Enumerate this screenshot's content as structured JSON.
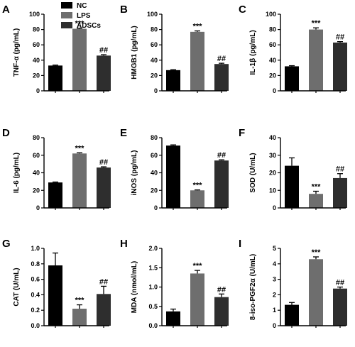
{
  "legend": [
    {
      "label": "NC",
      "color": "#000000"
    },
    {
      "label": "LPS",
      "color": "#6e6e6e"
    },
    {
      "label": "ADSCs",
      "color": "#2e2e2e"
    }
  ],
  "chart_data": [
    {
      "type": "bar",
      "panel": "A",
      "ylabel": "TNF-α (pg/mL)",
      "ylim": [
        0,
        100
      ],
      "ticks": [
        0,
        20,
        40,
        60,
        80,
        100
      ],
      "categories": [
        "NC",
        "LPS",
        "ADSCs"
      ],
      "values": [
        33,
        81,
        46
      ],
      "errors": [
        0.6,
        0.8,
        1.2
      ],
      "annotations": [
        "",
        "***",
        "##"
      ]
    },
    {
      "type": "bar",
      "panel": "B",
      "ylabel": "HMGB1 (pg/mL)",
      "ylim": [
        0,
        100
      ],
      "ticks": [
        0,
        20,
        40,
        60,
        80,
        100
      ],
      "categories": [
        "NC",
        "LPS",
        "ADSCs"
      ],
      "values": [
        27,
        77,
        35
      ],
      "errors": [
        0.6,
        1.2,
        1.0
      ],
      "annotations": [
        "",
        "***",
        "##"
      ]
    },
    {
      "type": "bar",
      "panel": "C",
      "ylabel": "IL-1β (pg/mL)",
      "ylim": [
        0,
        100
      ],
      "ticks": [
        0,
        20,
        40,
        60,
        80,
        100
      ],
      "categories": [
        "NC",
        "LPS",
        "ADSCs"
      ],
      "values": [
        32,
        80,
        63
      ],
      "errors": [
        0.8,
        2.2,
        1.2
      ],
      "annotations": [
        "",
        "***",
        "##"
      ]
    },
    {
      "type": "bar",
      "panel": "D",
      "ylabel": "IL-6 (pg/mL)",
      "ylim": [
        0,
        80
      ],
      "ticks": [
        0,
        20,
        40,
        60,
        80
      ],
      "categories": [
        "NC",
        "LPS",
        "ADSCs"
      ],
      "values": [
        29,
        62,
        46
      ],
      "errors": [
        0.5,
        0.8,
        0.8
      ],
      "annotations": [
        "",
        "***",
        "##"
      ]
    },
    {
      "type": "bar",
      "panel": "E",
      "ylabel": "iNOS (pg/mL)",
      "ylim": [
        0,
        80
      ],
      "ticks": [
        0,
        20,
        40,
        60,
        80
      ],
      "categories": [
        "NC",
        "LPS",
        "ADSCs"
      ],
      "values": [
        71,
        20,
        54
      ],
      "errors": [
        0.8,
        0.5,
        0.8
      ],
      "annotations": [
        "",
        "***",
        "##"
      ]
    },
    {
      "type": "bar",
      "panel": "F",
      "ylabel": "SOD (U/mL)",
      "ylim": [
        0,
        40
      ],
      "ticks": [
        0,
        10,
        20,
        30,
        40
      ],
      "categories": [
        "NC",
        "LPS",
        "ADSCs"
      ],
      "values": [
        24,
        8,
        17
      ],
      "errors": [
        4.5,
        1.5,
        2.5
      ],
      "annotations": [
        "",
        "***",
        "##"
      ]
    },
    {
      "type": "bar",
      "panel": "G",
      "ylabel": "CAT (U/mL)",
      "ylim": [
        0,
        1.0
      ],
      "ticks": [
        0.0,
        0.2,
        0.4,
        0.6,
        0.8,
        1.0
      ],
      "tick_format": 1,
      "categories": [
        "NC",
        "LPS",
        "ADSCs"
      ],
      "values": [
        0.78,
        0.22,
        0.41
      ],
      "errors": [
        0.16,
        0.05,
        0.1
      ],
      "annotations": [
        "",
        "***",
        "##"
      ]
    },
    {
      "type": "bar",
      "panel": "H",
      "ylabel": "MDA (nmol/mL)",
      "ylim": [
        0,
        2.0
      ],
      "ticks": [
        0.0,
        0.5,
        1.0,
        1.5,
        2.0
      ],
      "tick_format": 1,
      "categories": [
        "NC",
        "LPS",
        "ADSCs"
      ],
      "values": [
        0.37,
        1.35,
        0.74
      ],
      "errors": [
        0.06,
        0.08,
        0.08
      ],
      "annotations": [
        "",
        "***",
        "##"
      ]
    },
    {
      "type": "bar",
      "panel": "I",
      "ylabel": "8-iso-PGF2α (U/mL)",
      "ylim": [
        0,
        5
      ],
      "ticks": [
        0,
        1,
        2,
        3,
        4,
        5
      ],
      "categories": [
        "NC",
        "LPS",
        "ADSCs"
      ],
      "values": [
        1.35,
        4.3,
        2.4
      ],
      "errors": [
        0.15,
        0.15,
        0.1
      ],
      "annotations": [
        "",
        "***",
        "##"
      ]
    }
  ]
}
